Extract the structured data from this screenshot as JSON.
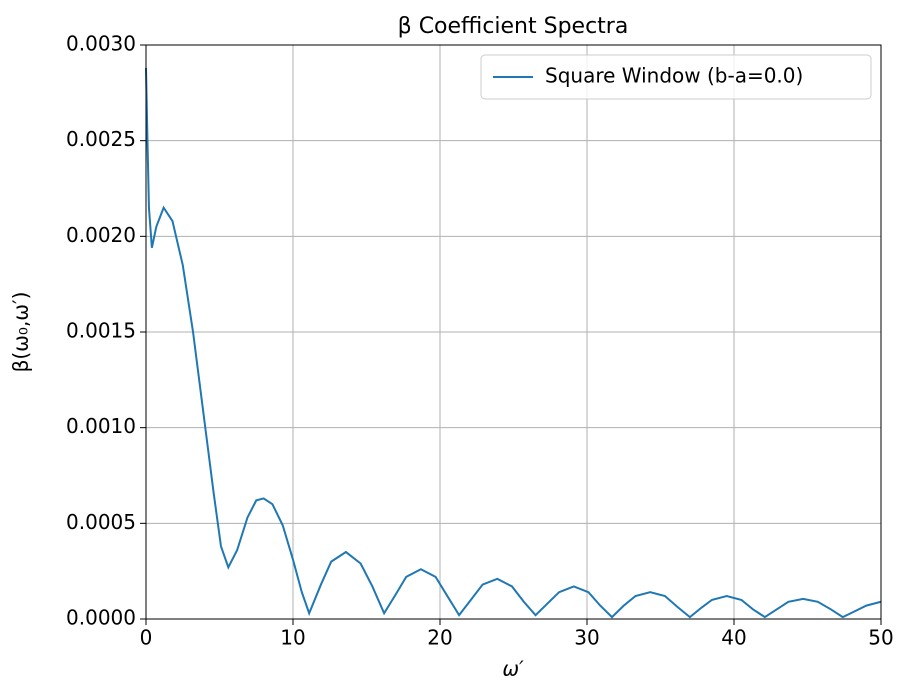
{
  "chart_data": {
    "type": "line",
    "title": "β Coefficient Spectra",
    "xlabel": "ω′",
    "ylabel": "β(ω₀,ω′)",
    "x": [
      0,
      0.1,
      0.2,
      0.4,
      0.7,
      1.2,
      1.8,
      2.5,
      3.2,
      4,
      4.6,
      5.1,
      5.6,
      6.2,
      6.9,
      7.5,
      8,
      8.6,
      9.3,
      10,
      10.6,
      11.1,
      11.9,
      12.6,
      13.6,
      14.6,
      15.4,
      16.2,
      17.0,
      17.7,
      18.7,
      19.7,
      20.5,
      21.3,
      22.1,
      22.9,
      23.9,
      24.9,
      25.7,
      26.5,
      27.3,
      28.1,
      29.1,
      30.1,
      30.9,
      31.7,
      32.5,
      33.3,
      34.3,
      35.3,
      36.2,
      37.0,
      37.8,
      38.5,
      39.5,
      40.5,
      41.3,
      42.1,
      42.9,
      43.7,
      44.7,
      45.7,
      46.6,
      47.4,
      48.2,
      49,
      50
    ],
    "series": [
      {
        "name": "Square Window (b-a=0.0)",
        "color": "#1f77b4",
        "values": [
          0.00288,
          0.0025,
          0.00215,
          0.00194,
          0.00205,
          0.00215,
          0.00208,
          0.00185,
          0.0015,
          0.00102,
          0.00066,
          0.00038,
          0.00027,
          0.00036,
          0.00053,
          0.00062,
          0.00063,
          0.0006,
          0.00049,
          0.00031,
          0.00014,
          3e-05,
          0.00018,
          0.0003,
          0.00035,
          0.00029,
          0.00017,
          3e-05,
          0.00013,
          0.00022,
          0.00026,
          0.00022,
          0.00012,
          2e-05,
          0.0001,
          0.00018,
          0.00021,
          0.00017,
          9e-05,
          2e-05,
          8e-05,
          0.00014,
          0.00017,
          0.00014,
          7e-05,
          1e-05,
          7e-05,
          0.00012,
          0.00014,
          0.00012,
          6e-05,
          1e-05,
          6e-05,
          0.0001,
          0.00012,
          0.0001,
          5e-05,
          1e-05,
          5e-05,
          9e-05,
          0.000105,
          9e-05,
          5e-05,
          1e-05,
          4e-05,
          7e-05,
          9e-05
        ]
      }
    ],
    "xlim": [
      0,
      50
    ],
    "xticks": [
      0,
      10,
      20,
      30,
      40,
      50
    ],
    "ylim": [
      0,
      0.003
    ],
    "yticks": [
      {
        "value": 0,
        "label": "0.0000"
      },
      {
        "value": 0.0005,
        "label": "0.0005"
      },
      {
        "value": 0.001,
        "label": "0.0010"
      },
      {
        "value": 0.0015,
        "label": "0.0015"
      },
      {
        "value": 0.002,
        "label": "0.0020"
      },
      {
        "value": 0.0025,
        "label": "0.0025"
      },
      {
        "value": 0.003,
        "label": "0.0030"
      }
    ],
    "grid": true,
    "legend": "upper right"
  }
}
